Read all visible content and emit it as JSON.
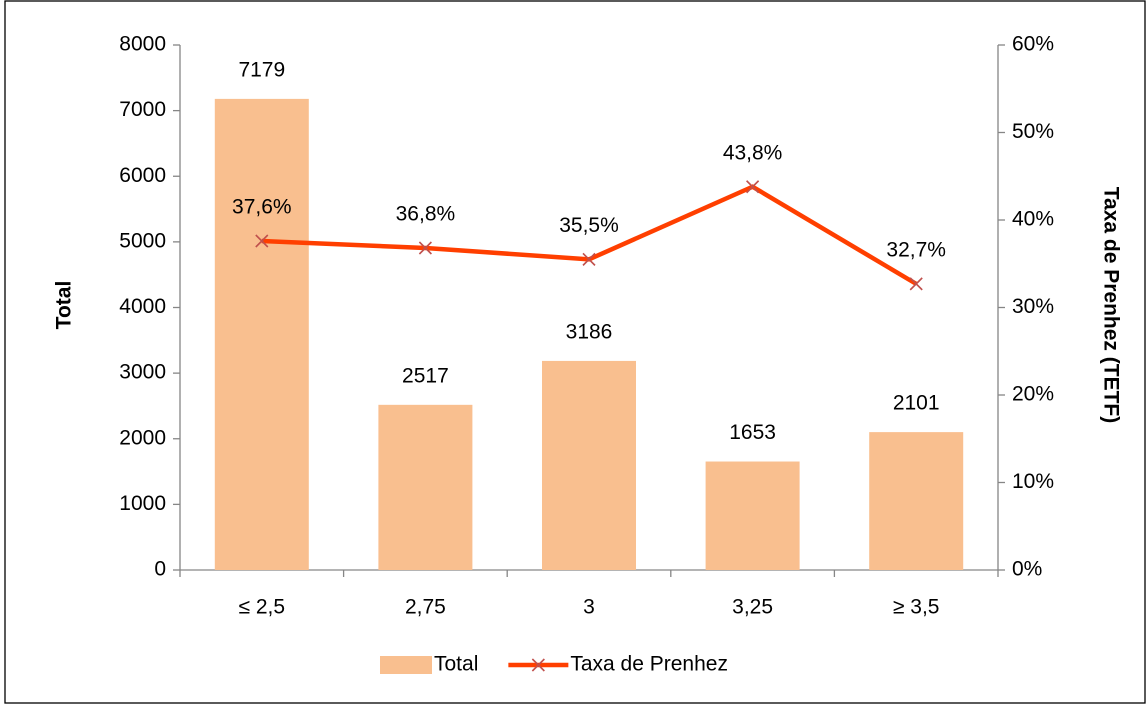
{
  "chart_data": {
    "type": "bar",
    "categories": [
      "≤ 2,5",
      "2,75",
      "3",
      "3,25",
      "≥ 3,5"
    ],
    "series": [
      {
        "name": "Total",
        "type": "bar",
        "color": "#f9bf8f",
        "values": [
          7179,
          2517,
          3186,
          1653,
          2101
        ]
      },
      {
        "name": "Taxa de Prenhez",
        "type": "line",
        "axis": "y2",
        "color": "#ff3f00",
        "marker_color": "#c0504d",
        "values": [
          37.6,
          36.8,
          35.5,
          43.8,
          32.7
        ],
        "value_labels": [
          "37,6%",
          "36,8%",
          "35,5%",
          "43,8%",
          "32,7%"
        ]
      }
    ],
    "ylabel": "Total",
    "y2label": "Taxa de Prenhez (TETF)",
    "ylim": [
      0,
      8000
    ],
    "yticks": [
      0,
      1000,
      2000,
      3000,
      4000,
      5000,
      6000,
      7000,
      8000
    ],
    "y2lim": [
      0,
      60
    ],
    "y2ticks": [
      {
        "value": 0,
        "label": "0%"
      },
      {
        "value": 10,
        "label": "10%"
      },
      {
        "value": 20,
        "label": "20%"
      },
      {
        "value": 30,
        "label": "30%"
      },
      {
        "value": 40,
        "label": "40%"
      },
      {
        "value": 50,
        "label": "50%"
      },
      {
        "value": 60,
        "label": "60%"
      }
    ],
    "legend": "bottom"
  }
}
